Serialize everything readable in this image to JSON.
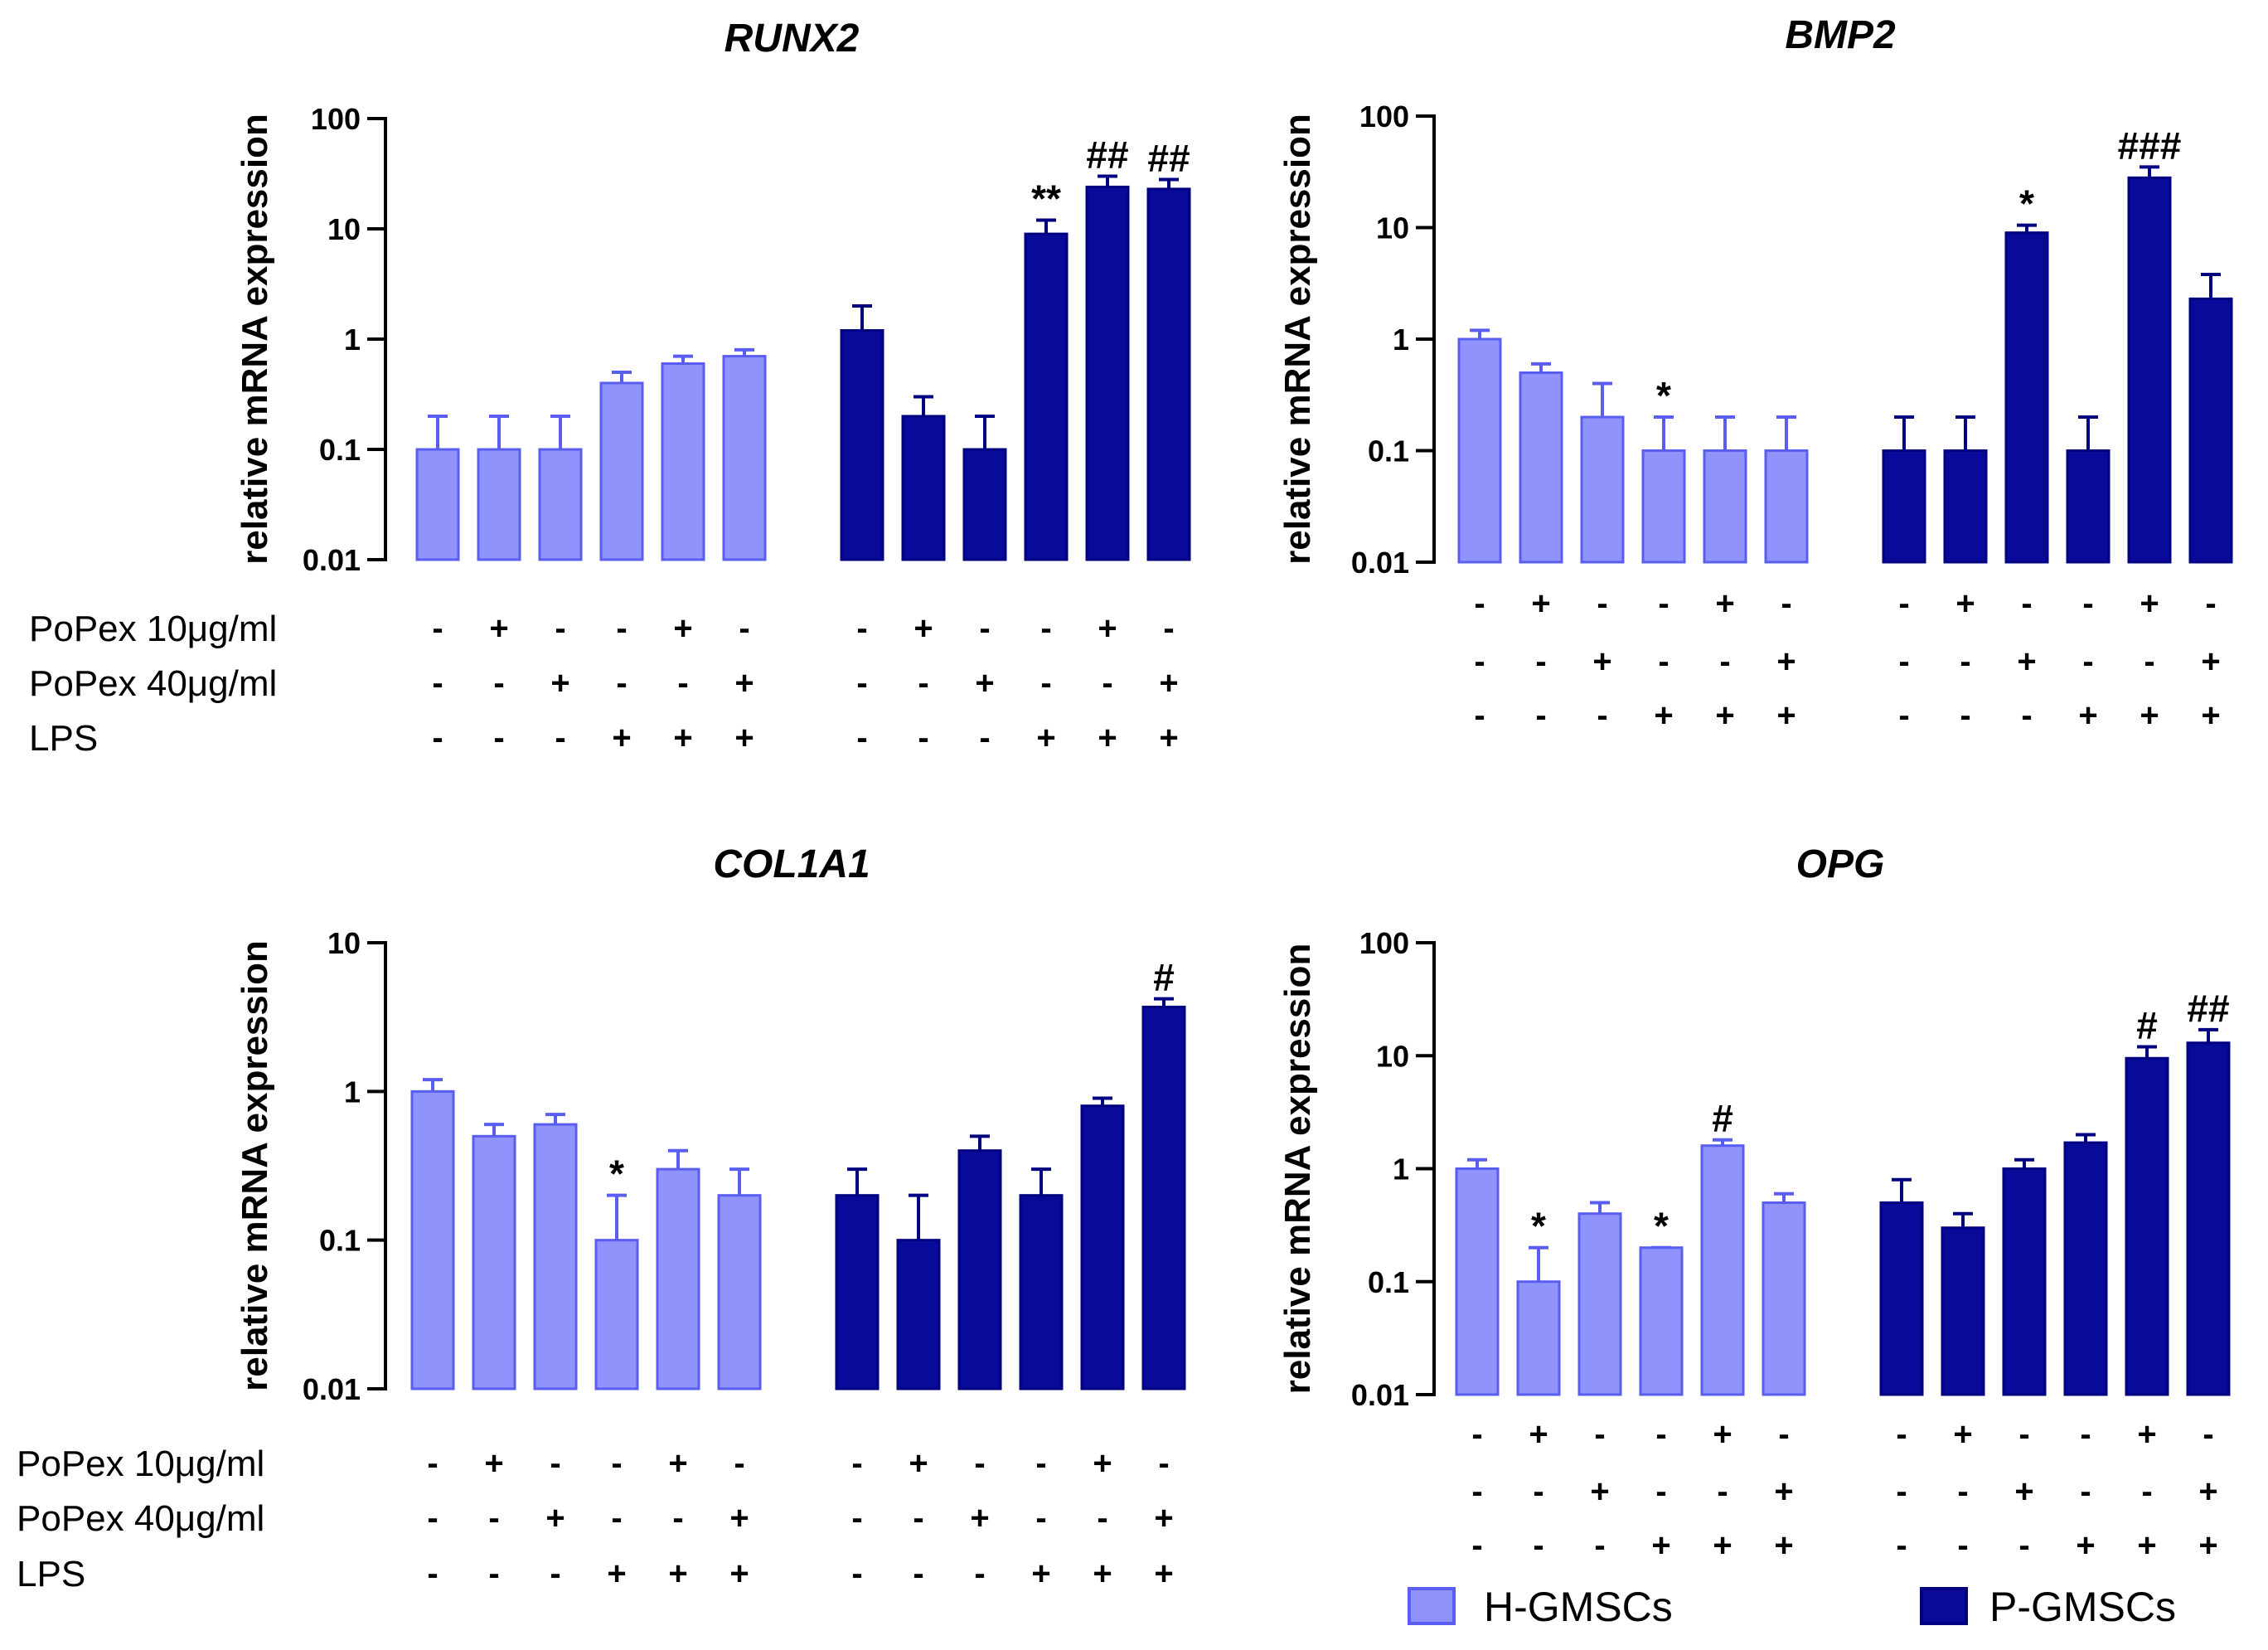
{
  "colors": {
    "h_gmsc": "#8f93fb",
    "h_gmsc_edge": "#5a5ef0",
    "p_gmsc": "#0a0a9a",
    "p_gmsc_edge": "#000080"
  },
  "legend": {
    "h_label": "H-GMSCs",
    "p_label": "P-GMSCs"
  },
  "condition_rows": [
    "PoPex 10μg/ml",
    "PoPex 40μg/ml",
    "LPS"
  ],
  "condition_signs": {
    "popex10": [
      "-",
      "+",
      "-",
      "-",
      "+",
      "-",
      "-",
      "+",
      "-",
      "-",
      "+",
      "-"
    ],
    "popex40": [
      "-",
      "-",
      "+",
      "-",
      "-",
      "+",
      "-",
      "-",
      "+",
      "-",
      "-",
      "+"
    ],
    "lps": [
      "-",
      "-",
      "-",
      "+",
      "+",
      "+",
      "-",
      "-",
      "-",
      "+",
      "+",
      "+"
    ]
  },
  "chart_data": [
    {
      "type": "bar",
      "title": "RUNX2",
      "ylabel": "relative mRNA expression",
      "yscale": "log",
      "ylim": [
        0.01,
        100
      ],
      "yticks": [
        "0.01",
        "0.1",
        "1",
        "10",
        "100"
      ],
      "series": [
        {
          "name": "H-GMSCs",
          "values": [
            0.1,
            0.1,
            0.1,
            0.4,
            0.6,
            0.7
          ],
          "err_top": [
            0.2,
            0.2,
            0.2,
            0.5,
            0.7,
            0.8
          ],
          "annotations": [
            "",
            "",
            "",
            "",
            "",
            ""
          ]
        },
        {
          "name": "P-GMSCs",
          "values": [
            1.2,
            0.2,
            0.1,
            9,
            24,
            23
          ],
          "err_top": [
            2.0,
            0.3,
            0.2,
            12,
            30,
            28
          ],
          "annotations": [
            "",
            "",
            "",
            "**",
            "##",
            "##"
          ]
        }
      ],
      "show_row_labels": true
    },
    {
      "type": "bar",
      "title": "BMP2",
      "ylabel": "relative mRNA expression",
      "yscale": "log",
      "ylim": [
        0.01,
        100
      ],
      "yticks": [
        "0.01",
        "0.1",
        "1",
        "10",
        "100"
      ],
      "series": [
        {
          "name": "H-GMSCs",
          "values": [
            1.0,
            0.5,
            0.2,
            0.1,
            0.1,
            0.1
          ],
          "err_top": [
            1.2,
            0.6,
            0.4,
            0.2,
            0.2,
            0.2
          ],
          "annotations": [
            "",
            "",
            "",
            "*",
            "",
            ""
          ]
        },
        {
          "name": "P-GMSCs",
          "values": [
            0.1,
            0.1,
            9,
            0.1,
            28,
            2.3
          ],
          "err_top": [
            0.2,
            0.2,
            10.5,
            0.2,
            35,
            3.8
          ],
          "annotations": [
            "",
            "",
            "*",
            "",
            "###",
            ""
          ]
        }
      ],
      "show_row_labels": false
    },
    {
      "type": "bar",
      "title": "COL1A1",
      "ylabel": "relative mRNA expression",
      "yscale": "log",
      "ylim": [
        0.01,
        10
      ],
      "yticks": [
        "0.01",
        "0.1",
        "1",
        "10"
      ],
      "series": [
        {
          "name": "H-GMSCs",
          "values": [
            1.0,
            0.5,
            0.6,
            0.1,
            0.3,
            0.2
          ],
          "err_top": [
            1.2,
            0.6,
            0.7,
            0.2,
            0.4,
            0.3
          ],
          "annotations": [
            "",
            "",
            "",
            "*",
            "",
            ""
          ]
        },
        {
          "name": "P-GMSCs",
          "values": [
            0.2,
            0.1,
            0.4,
            0.2,
            0.8,
            3.7
          ],
          "err_top": [
            0.3,
            0.2,
            0.5,
            0.3,
            0.9,
            4.2
          ],
          "annotations": [
            "",
            "",
            "",
            "",
            "",
            "#"
          ]
        }
      ],
      "show_row_labels": true
    },
    {
      "type": "bar",
      "title": "OPG",
      "ylabel": "relative mRNA expression",
      "yscale": "log",
      "ylim": [
        0.01,
        100
      ],
      "yticks": [
        "0.01",
        "0.1",
        "1",
        "10",
        "100"
      ],
      "series": [
        {
          "name": "H-GMSCs",
          "values": [
            1.0,
            0.1,
            0.4,
            0.2,
            1.6,
            0.5
          ],
          "err_top": [
            1.2,
            0.2,
            0.5,
            0.2,
            1.8,
            0.6
          ],
          "annotations": [
            "",
            "*",
            "",
            "*",
            "#",
            ""
          ]
        },
        {
          "name": "P-GMSCs",
          "values": [
            0.5,
            0.3,
            1.0,
            1.7,
            9.5,
            13
          ],
          "err_top": [
            0.8,
            0.4,
            1.2,
            2.0,
            12,
            17
          ],
          "annotations": [
            "",
            "",
            "",
            "",
            "#",
            "##"
          ]
        }
      ],
      "show_row_labels": false
    }
  ]
}
